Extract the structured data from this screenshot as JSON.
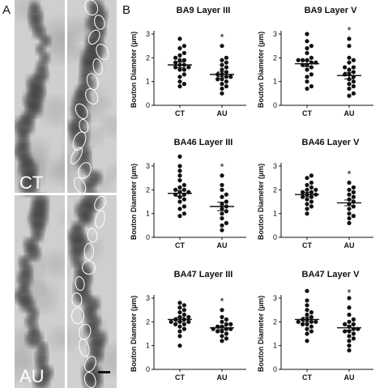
{
  "panel_a": {
    "letter": "A",
    "label_top": "CT",
    "label_bottom": "AU"
  },
  "panel_b": {
    "letter": "B"
  },
  "chart_data": [
    {
      "type": "scatter",
      "title": "BA9 Layer III",
      "ylabel": "Bouton Diameter (µm)",
      "categories": [
        "CT",
        "AU"
      ],
      "ylim": [
        0,
        3
      ],
      "yticks": [
        0,
        1,
        2,
        3
      ],
      "significance": "*",
      "groups": [
        {
          "mean": 1.7,
          "sem": 0.12,
          "values": [
            2.8,
            2.5,
            2.4,
            2.2,
            2.1,
            2.0,
            1.9,
            1.9,
            1.8,
            1.7,
            1.7,
            1.6,
            1.6,
            1.5,
            1.5,
            1.3,
            1.2,
            1.0,
            0.9,
            0.8
          ]
        },
        {
          "mean": 1.3,
          "sem": 0.1,
          "values": [
            2.5,
            2.0,
            1.9,
            1.8,
            1.7,
            1.5,
            1.4,
            1.3,
            1.3,
            1.2,
            1.2,
            1.1,
            1.1,
            1.0,
            0.9,
            0.8,
            0.7,
            0.5,
            1.6
          ]
        }
      ]
    },
    {
      "type": "scatter",
      "title": "BA9 Layer V",
      "ylabel": "Bouton Diameter (µm)",
      "categories": [
        "CT",
        "AU"
      ],
      "ylim": [
        0,
        3
      ],
      "yticks": [
        0,
        1,
        2,
        3
      ],
      "significance": "*",
      "groups": [
        {
          "mean": 1.75,
          "sem": 0.12,
          "values": [
            3.0,
            2.7,
            2.5,
            2.4,
            2.2,
            2.0,
            1.9,
            1.9,
            1.8,
            1.8,
            1.7,
            1.7,
            1.6,
            1.5,
            1.3,
            1.2,
            1.0,
            0.8,
            0.7,
            1.9
          ]
        },
        {
          "mean": 1.25,
          "sem": 0.14,
          "values": [
            2.8,
            2.5,
            2.0,
            1.9,
            1.8,
            1.6,
            1.5,
            1.4,
            1.3,
            1.3,
            1.2,
            1.1,
            1.0,
            0.9,
            0.8,
            0.7,
            0.5,
            0.4,
            1.6
          ]
        }
      ]
    },
    {
      "type": "scatter",
      "title": "BA46 Layer III",
      "ylabel": "Bouton Diameter (µm)",
      "categories": [
        "CT",
        "AU"
      ],
      "ylim": [
        0,
        3
      ],
      "yticks": [
        0,
        1,
        2,
        3
      ],
      "significance": "*",
      "groups": [
        {
          "mean": 1.85,
          "sem": 0.12,
          "values": [
            3.4,
            3.0,
            2.8,
            2.6,
            2.4,
            2.2,
            2.0,
            2.0,
            1.9,
            1.9,
            1.8,
            1.8,
            1.7,
            1.6,
            1.5,
            1.3,
            1.2,
            1.0,
            0.9,
            2.1
          ]
        },
        {
          "mean": 1.3,
          "sem": 0.18,
          "values": [
            2.6,
            2.2,
            2.0,
            1.8,
            1.7,
            1.5,
            1.4,
            1.3,
            1.2,
            1.1,
            1.0,
            0.8,
            0.6,
            0.5,
            0.3
          ]
        }
      ]
    },
    {
      "type": "scatter",
      "title": "BA46 Layer V",
      "ylabel": "Bouton Diameter (µm)",
      "categories": [
        "CT",
        "AU"
      ],
      "ylim": [
        0,
        3
      ],
      "yticks": [
        0,
        1,
        2,
        3
      ],
      "significance": "*",
      "groups": [
        {
          "mean": 1.8,
          "sem": 0.09,
          "values": [
            2.6,
            2.5,
            2.3,
            2.2,
            2.1,
            2.0,
            1.9,
            1.9,
            1.8,
            1.8,
            1.7,
            1.7,
            1.6,
            1.5,
            1.4,
            1.3,
            1.2,
            1.0,
            2.0
          ]
        },
        {
          "mean": 1.45,
          "sem": 0.12,
          "values": [
            2.3,
            2.1,
            2.0,
            1.9,
            1.8,
            1.7,
            1.6,
            1.5,
            1.4,
            1.3,
            1.2,
            1.0,
            0.9,
            0.8,
            0.6
          ]
        }
      ]
    },
    {
      "type": "scatter",
      "title": "BA47 Layer III",
      "ylabel": "Bouton Diameter (µm)",
      "categories": [
        "CT",
        "AU"
      ],
      "ylim": [
        0,
        3
      ],
      "yticks": [
        0,
        1,
        2,
        3
      ],
      "significance": "*",
      "groups": [
        {
          "mean": 2.1,
          "sem": 0.08,
          "values": [
            2.8,
            2.7,
            2.6,
            2.5,
            2.4,
            2.3,
            2.2,
            2.2,
            2.1,
            2.1,
            2.0,
            2.0,
            1.9,
            1.9,
            1.8,
            1.7,
            1.6,
            1.4,
            1.0,
            2.0
          ]
        },
        {
          "mean": 1.75,
          "sem": 0.07,
          "values": [
            2.5,
            2.2,
            2.1,
            2.0,
            1.9,
            1.9,
            1.8,
            1.8,
            1.7,
            1.7,
            1.6,
            1.6,
            1.5,
            1.4,
            1.3,
            1.2,
            1.7
          ]
        }
      ]
    },
    {
      "type": "scatter",
      "title": "BA47 Layer V",
      "ylabel": "Bouton Diameter (µm)",
      "categories": [
        "CT",
        "AU"
      ],
      "ylim": [
        0,
        3
      ],
      "yticks": [
        0,
        1,
        2,
        3
      ],
      "significance": "*",
      "groups": [
        {
          "mean": 2.1,
          "sem": 0.09,
          "values": [
            3.3,
            2.9,
            2.7,
            2.5,
            2.4,
            2.3,
            2.2,
            2.1,
            2.1,
            2.0,
            2.0,
            1.9,
            1.9,
            1.8,
            1.7,
            1.6,
            1.5,
            1.2,
            2.0
          ]
        },
        {
          "mean": 1.75,
          "sem": 0.1,
          "values": [
            3.0,
            2.6,
            2.3,
            2.1,
            2.0,
            1.9,
            1.9,
            1.8,
            1.7,
            1.7,
            1.6,
            1.5,
            1.4,
            1.3,
            1.2,
            1.0,
            0.8,
            1.6
          ]
        }
      ]
    }
  ]
}
